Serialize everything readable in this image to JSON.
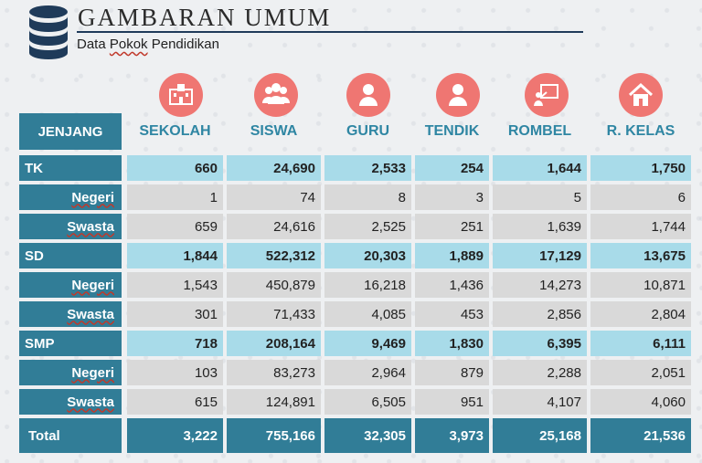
{
  "header": {
    "title": "GAMBARAN UMUM",
    "subtitle_word1": "Data",
    "subtitle_word2": "Pokok",
    "subtitle_word3": "Pendidikan"
  },
  "colors": {
    "header_blue": "#317d97",
    "group_row": "#a8dbe9",
    "sub_row": "#d9d9d9",
    "icon_circle": "#ef7672"
  },
  "icons": [
    "school-icon",
    "students-icon",
    "teacher-icon",
    "staff-icon",
    "class-icon",
    "classroom-icon"
  ],
  "table": {
    "corner_label": "JENJANG",
    "columns": [
      "SEKOLAH",
      "SISWA",
      "GURU",
      "TENDIK",
      "ROMBEL",
      "R. KELAS"
    ],
    "rows": [
      {
        "label": "TK",
        "type": "group",
        "values": [
          "660",
          "24,690",
          "2,533",
          "254",
          "1,644",
          "1,750"
        ]
      },
      {
        "label": "Negeri",
        "type": "sub",
        "values": [
          "1",
          "74",
          "8",
          "3",
          "5",
          "6"
        ]
      },
      {
        "label": "Swasta",
        "type": "sub",
        "values": [
          "659",
          "24,616",
          "2,525",
          "251",
          "1,639",
          "1,744"
        ]
      },
      {
        "label": "SD",
        "type": "group",
        "values": [
          "1,844",
          "522,312",
          "20,303",
          "1,889",
          "17,129",
          "13,675"
        ]
      },
      {
        "label": "Negeri",
        "type": "sub",
        "values": [
          "1,543",
          "450,879",
          "16,218",
          "1,436",
          "14,273",
          "10,871"
        ]
      },
      {
        "label": "Swasta",
        "type": "sub",
        "values": [
          "301",
          "71,433",
          "4,085",
          "453",
          "2,856",
          "2,804"
        ]
      },
      {
        "label": "SMP",
        "type": "group",
        "values": [
          "718",
          "208,164",
          "9,469",
          "1,830",
          "6,395",
          "6,111"
        ]
      },
      {
        "label": "Negeri",
        "type": "sub",
        "values": [
          "103",
          "83,273",
          "2,964",
          "879",
          "2,288",
          "2,051"
        ]
      },
      {
        "label": "Swasta",
        "type": "sub",
        "values": [
          "615",
          "124,891",
          "6,505",
          "951",
          "4,107",
          "4,060"
        ]
      },
      {
        "label": "Total",
        "type": "total",
        "values": [
          "3,222",
          "755,166",
          "32,305",
          "3,973",
          "25,168",
          "21,536"
        ]
      }
    ]
  }
}
